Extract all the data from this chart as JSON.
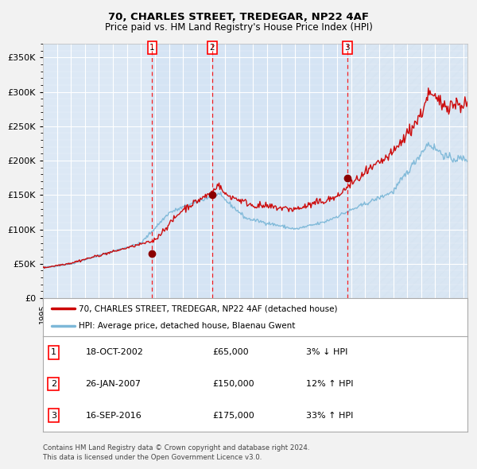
{
  "title1": "70, CHARLES STREET, TREDEGAR, NP22 4AF",
  "title2": "Price paid vs. HM Land Registry's House Price Index (HPI)",
  "legend_line1": "70, CHARLES STREET, TREDEGAR, NP22 4AF (detached house)",
  "legend_line2": "HPI: Average price, detached house, Blaenau Gwent",
  "footer": "Contains HM Land Registry data © Crown copyright and database right 2024.\nThis data is licensed under the Open Government Licence v3.0.",
  "transactions": [
    {
      "num": 1,
      "date": "18-OCT-2002",
      "price": 65000,
      "pct": "3%",
      "dir": "↓"
    },
    {
      "num": 2,
      "date": "26-JAN-2007",
      "price": 150000,
      "pct": "12%",
      "dir": "↑"
    },
    {
      "num": 3,
      "date": "16-SEP-2016",
      "price": 175000,
      "pct": "33%",
      "dir": "↑"
    }
  ],
  "transaction_dates_decimal": [
    2002.8,
    2007.07,
    2016.71
  ],
  "transaction_prices": [
    65000,
    150000,
    175000
  ],
  "hpi_color": "#7db8d8",
  "price_color": "#cc0000",
  "plot_bg": "#dce8f5",
  "grid_color": "#ffffff",
  "fig_bg": "#f0f0f0",
  "ylim": [
    0,
    370000
  ],
  "xlim_start": 1995.0,
  "xlim_end": 2025.3
}
